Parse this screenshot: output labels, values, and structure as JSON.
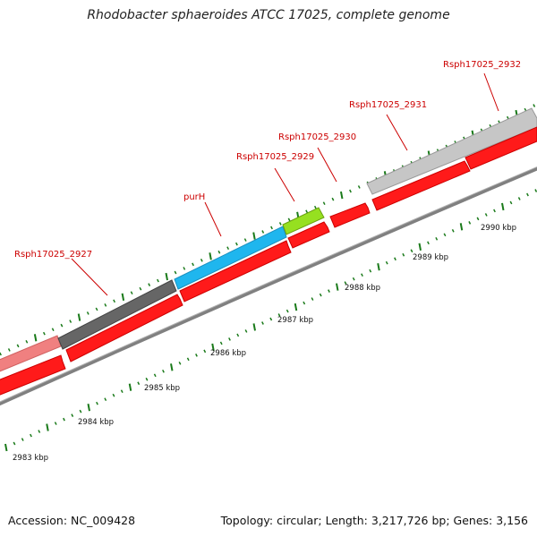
{
  "title": "Rhodobacter sphaeroides ATCC 17025, complete genome",
  "footer": {
    "accession": "Accession: NC_009428",
    "summary": "Topology: circular; Length: 3,217,726 bp; Genes: 3,156"
  },
  "colors": {
    "label": "#cc0000",
    "cds": "#ff1a1a",
    "backbone": "#808080",
    "tick": "#1a7a1a"
  },
  "gene_labels": [
    {
      "name": "Rsph17025_2927"
    },
    {
      "name": "purH"
    },
    {
      "name": "Rsph17025_2929"
    },
    {
      "name": "Rsph17025_2930"
    },
    {
      "name": "Rsph17025_2931"
    },
    {
      "name": "Rsph17025_2932"
    }
  ],
  "kbp_labels": [
    {
      "text": "2983 kbp"
    },
    {
      "text": "2984 kbp"
    },
    {
      "text": "2985 kbp"
    },
    {
      "text": "2986 kbp"
    },
    {
      "text": "2987 kbp"
    },
    {
      "text": "2988 kbp"
    },
    {
      "text": "2989 kbp"
    },
    {
      "text": "2990 kbp"
    }
  ]
}
